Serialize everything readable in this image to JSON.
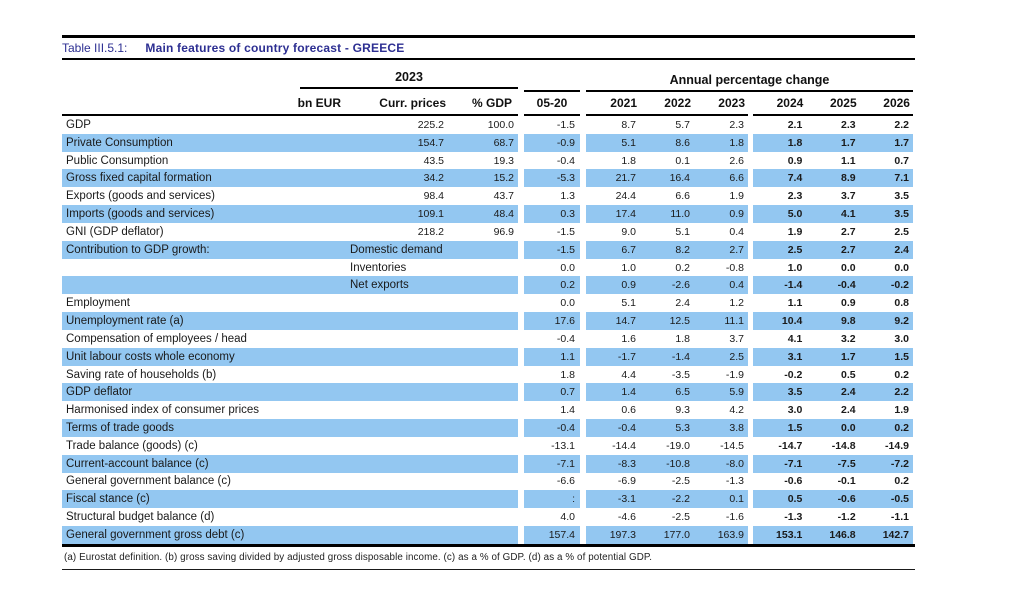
{
  "title": {
    "number": "Table III.5.1:",
    "text": "Main features of country forecast - GREECE"
  },
  "columns": {
    "group_left": "2023",
    "group_right": "Annual percentage change",
    "sub_left": [
      "bn EUR",
      "Curr. prices",
      "% GDP"
    ],
    "years": [
      "05-20",
      "2021",
      "2022",
      "2023",
      "2024",
      "2025",
      "2026"
    ]
  },
  "rows": [
    {
      "label": "GDP",
      "curr": "225.2",
      "gdp": "100.0",
      "values": [
        "-1.5",
        "8.7",
        "5.7",
        "2.3",
        "2.1",
        "2.3",
        "2.2"
      ],
      "shaded": false
    },
    {
      "label": "Private Consumption",
      "curr": "154.7",
      "gdp": "68.7",
      "values": [
        "-0.9",
        "5.1",
        "8.6",
        "1.8",
        "1.8",
        "1.7",
        "1.7"
      ],
      "shaded": true
    },
    {
      "label": "Public Consumption",
      "curr": "43.5",
      "gdp": "19.3",
      "values": [
        "-0.4",
        "1.8",
        "0.1",
        "2.6",
        "0.9",
        "1.1",
        "0.7"
      ],
      "shaded": false
    },
    {
      "label": "Gross fixed capital formation",
      "curr": "34.2",
      "gdp": "15.2",
      "values": [
        "-5.3",
        "21.7",
        "16.4",
        "6.6",
        "7.4",
        "8.9",
        "7.1"
      ],
      "shaded": true
    },
    {
      "label": "Exports (goods and services)",
      "curr": "98.4",
      "gdp": "43.7",
      "values": [
        "1.3",
        "24.4",
        "6.6",
        "1.9",
        "2.3",
        "3.7",
        "3.5"
      ],
      "shaded": false
    },
    {
      "label": "Imports (goods and services)",
      "curr": "109.1",
      "gdp": "48.4",
      "values": [
        "0.3",
        "17.4",
        "11.0",
        "0.9",
        "5.0",
        "4.1",
        "3.5"
      ],
      "shaded": true
    },
    {
      "label": "GNI (GDP deflator)",
      "curr": "218.2",
      "gdp": "96.9",
      "values": [
        "-1.5",
        "9.0",
        "5.1",
        "0.4",
        "1.9",
        "2.7",
        "2.5"
      ],
      "shaded": false
    },
    {
      "label": "Contribution to GDP growth:",
      "sublabel": "Domestic demand",
      "values": [
        "-1.5",
        "6.7",
        "8.2",
        "2.7",
        "2.5",
        "2.7",
        "2.4"
      ],
      "shaded": true
    },
    {
      "label": "",
      "sublabel": "Inventories",
      "values": [
        "0.0",
        "1.0",
        "0.2",
        "-0.8",
        "1.0",
        "0.0",
        "0.0"
      ],
      "shaded": false
    },
    {
      "label": "",
      "sublabel": "Net exports",
      "values": [
        "0.2",
        "0.9",
        "-2.6",
        "0.4",
        "-1.4",
        "-0.4",
        "-0.2"
      ],
      "shaded": true
    },
    {
      "label": "Employment",
      "values": [
        "0.0",
        "5.1",
        "2.4",
        "1.2",
        "1.1",
        "0.9",
        "0.8"
      ],
      "shaded": false
    },
    {
      "label": "Unemployment rate (a)",
      "values": [
        "17.6",
        "14.7",
        "12.5",
        "11.1",
        "10.4",
        "9.8",
        "9.2"
      ],
      "shaded": true
    },
    {
      "label": "Compensation of employees / head",
      "values": [
        "-0.4",
        "1.6",
        "1.8",
        "3.7",
        "4.1",
        "3.2",
        "3.0"
      ],
      "shaded": false
    },
    {
      "label": "Unit labour costs whole economy",
      "values": [
        "1.1",
        "-1.7",
        "-1.4",
        "2.5",
        "3.1",
        "1.7",
        "1.5"
      ],
      "shaded": true
    },
    {
      "label": "Saving rate of households (b)",
      "values": [
        "1.8",
        "4.4",
        "-3.5",
        "-1.9",
        "-0.2",
        "0.5",
        "0.2"
      ],
      "shaded": false
    },
    {
      "label": "GDP deflator",
      "values": [
        "0.7",
        "1.4",
        "6.5",
        "5.9",
        "3.5",
        "2.4",
        "2.2"
      ],
      "shaded": true
    },
    {
      "label": "Harmonised index of consumer prices",
      "values": [
        "1.4",
        "0.6",
        "9.3",
        "4.2",
        "3.0",
        "2.4",
        "1.9"
      ],
      "shaded": false
    },
    {
      "label": "Terms of trade goods",
      "values": [
        "-0.4",
        "-0.4",
        "5.3",
        "3.8",
        "1.5",
        "0.0",
        "0.2"
      ],
      "shaded": true
    },
    {
      "label": "Trade balance (goods) (c)",
      "values": [
        "-13.1",
        "-14.4",
        "-19.0",
        "-14.5",
        "-14.7",
        "-14.8",
        "-14.9"
      ],
      "shaded": false
    },
    {
      "label": "Current-account balance (c)",
      "values": [
        "-7.1",
        "-8.3",
        "-10.8",
        "-8.0",
        "-7.1",
        "-7.5",
        "-7.2"
      ],
      "shaded": true
    },
    {
      "label": "General government balance (c)",
      "values": [
        "-6.6",
        "-6.9",
        "-2.5",
        "-1.3",
        "-0.6",
        "-0.1",
        "0.2"
      ],
      "shaded": false
    },
    {
      "label": "Fiscal stance (c)",
      "values": [
        ":",
        "-3.1",
        "-2.2",
        "0.1",
        "0.5",
        "-0.6",
        "-0.5"
      ],
      "shaded": true
    },
    {
      "label": "Structural budget balance (d)",
      "values": [
        "4.0",
        "-4.6",
        "-2.5",
        "-1.6",
        "-1.3",
        "-1.2",
        "-1.1"
      ],
      "shaded": false
    },
    {
      "label": "General government gross debt (c)",
      "values": [
        "157.4",
        "197.3",
        "177.0",
        "163.9",
        "153.1",
        "146.8",
        "142.7"
      ],
      "shaded": true
    }
  ],
  "footnote": "(a) Eurostat definition.  (b) gross saving divided by adjusted gross disposable income.  (c) as a % of GDP. (d) as a % of potential GDP.",
  "colors": {
    "accent_navy": "#2d2f92",
    "row_shade": "#93c7f1",
    "line": "#000000"
  }
}
